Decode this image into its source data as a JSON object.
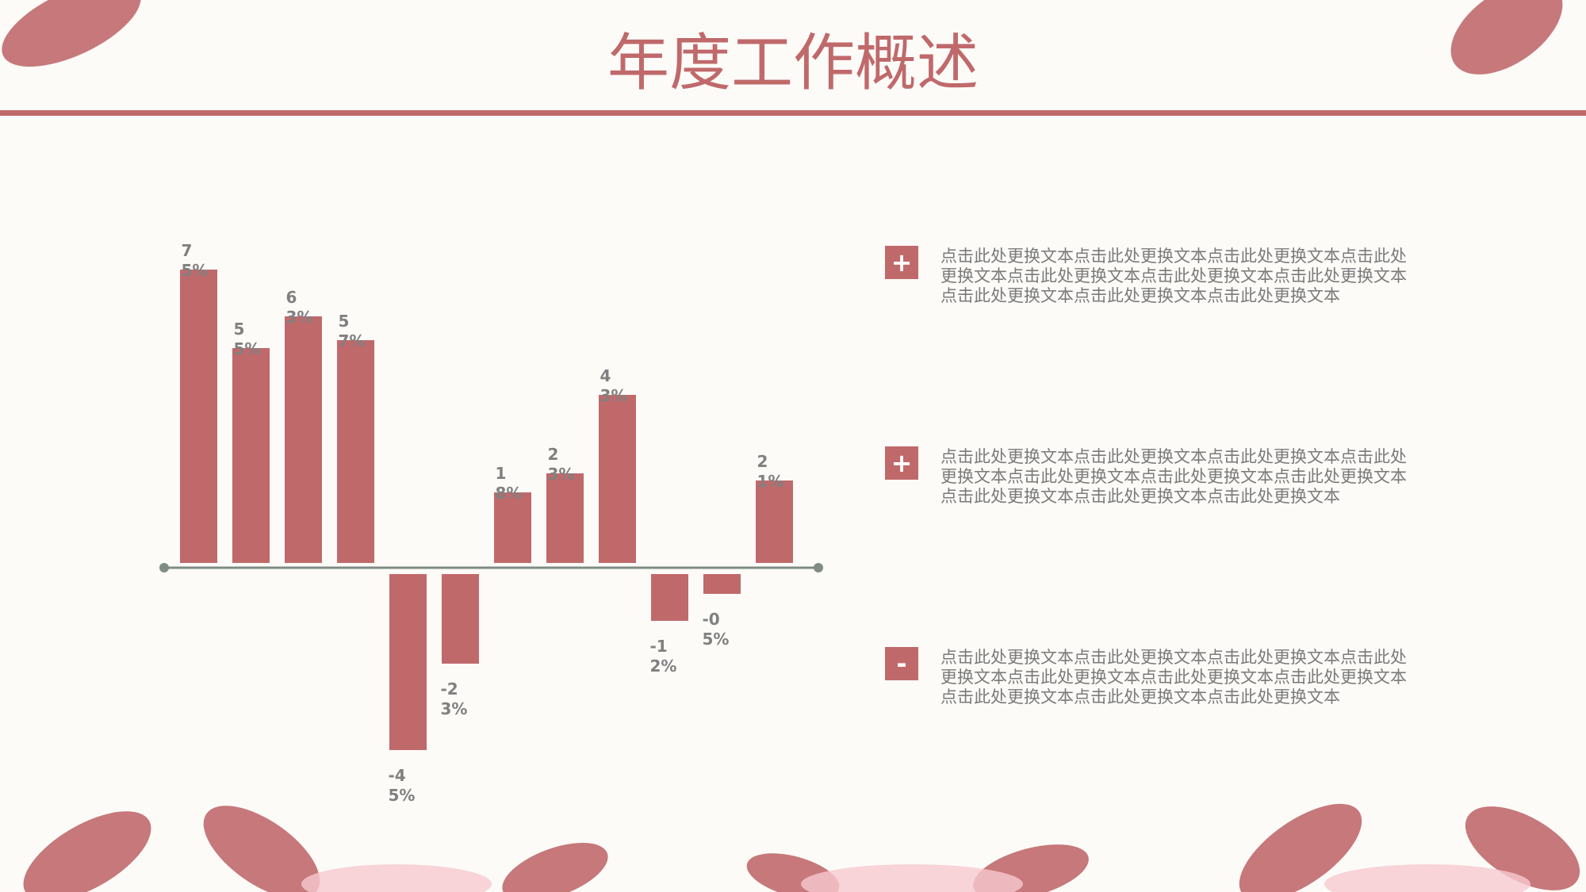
{
  "chart_data": {
    "type": "bar",
    "title": "年度工作概述",
    "values": [
      75,
      55,
      63,
      57,
      -45,
      -23,
      18,
      23,
      43,
      -12,
      -5,
      21
    ],
    "value_labels": [
      "75%",
      "55%",
      "63%",
      "57%",
      "-45%",
      "-23%",
      "18%",
      "23%",
      "43%",
      "-12%",
      "-05%",
      "21%"
    ],
    "color": "#c0696b"
  },
  "slide": {
    "items": [
      {
        "icon": "+",
        "text": "点击此处更换文本点击此处更换文本点击此处更换文本点击此处更换文本点击此处更换文本点击此处更换文本点击此处更换文本点击此处更换文本点击此处更换文本点击此处更换文本"
      },
      {
        "icon": "+",
        "text": "点击此处更换文本点击此处更换文本点击此处更换文本点击此处更换文本点击此处更换文本点击此处更换文本点击此处更换文本点击此处更换文本点击此处更换文本点击此处更换文本"
      },
      {
        "icon": "-",
        "text": "点击此处更换文本点击此处更换文本点击此处更换文本点击此处更换文本点击此处更换文本点击此处更换文本点击此处更换文本点击此处更换文本点击此处更换文本点击此处更换文本"
      }
    ]
  }
}
